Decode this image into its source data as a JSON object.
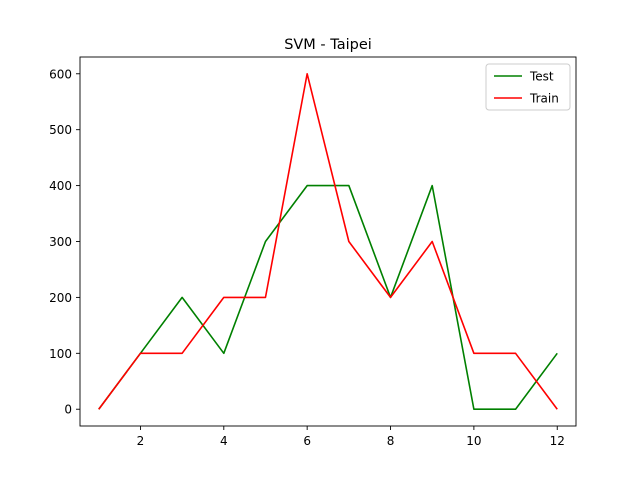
{
  "chart_data": {
    "type": "line",
    "title": "SVM - Taipei",
    "xlabel": "",
    "ylabel": "",
    "x": [
      1,
      2,
      3,
      4,
      5,
      6,
      7,
      8,
      9,
      10,
      11,
      12
    ],
    "xlim": [
      0.55,
      12.45
    ],
    "ylim": [
      -30,
      630
    ],
    "xticks": [
      2,
      4,
      6,
      8,
      10,
      12
    ],
    "yticks": [
      0,
      100,
      200,
      300,
      400,
      500,
      600
    ],
    "grid": false,
    "legend_position": "top-right",
    "series": [
      {
        "name": "Test",
        "color": "#008000",
        "values": [
          0,
          100,
          200,
          100,
          300,
          400,
          400,
          200,
          400,
          0,
          0,
          100
        ]
      },
      {
        "name": "Train",
        "color": "#ff0000",
        "values": [
          0,
          100,
          100,
          200,
          200,
          600,
          300,
          200,
          300,
          100,
          100,
          0
        ]
      }
    ]
  }
}
